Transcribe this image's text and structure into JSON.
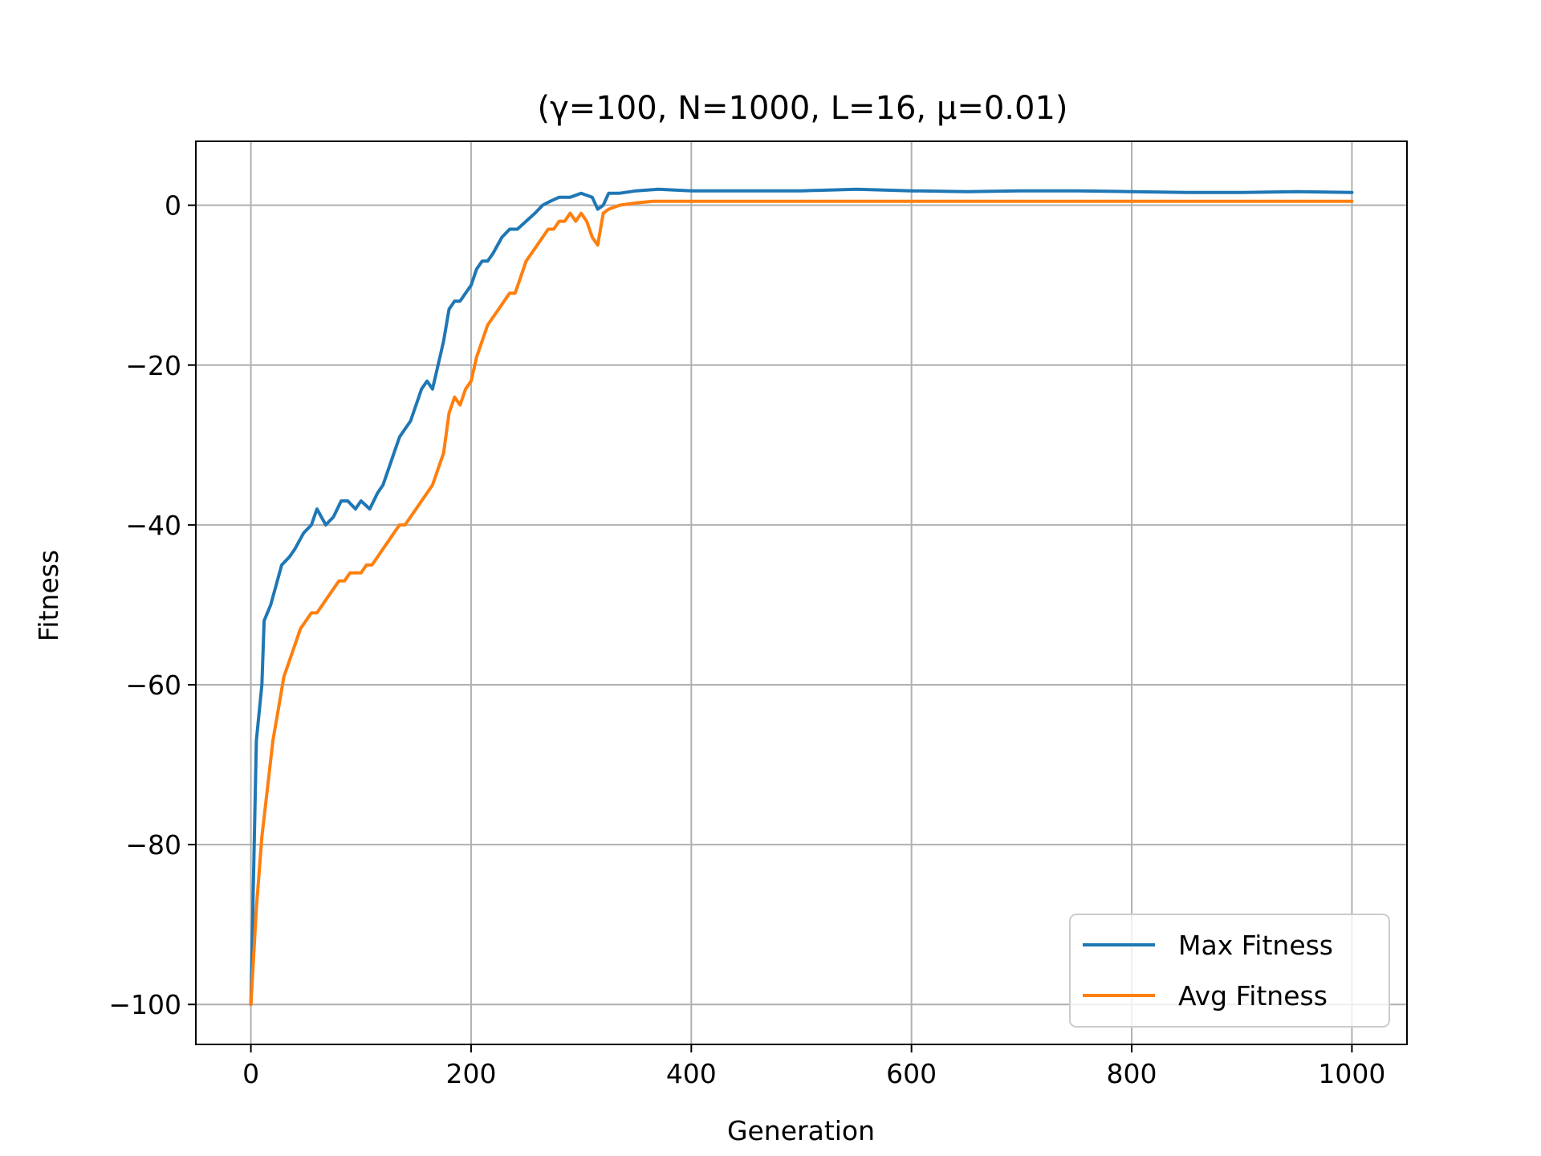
{
  "chart_data": {
    "type": "line",
    "title": "(γ=100, N=1000, L=16, μ=0.01)",
    "xlabel": "Generation",
    "ylabel": "Fitness",
    "xlim": [
      -50,
      1050
    ],
    "ylim": [
      -105,
      8
    ],
    "xticks": [
      0,
      200,
      400,
      600,
      800,
      1000
    ],
    "xtick_labels": [
      "0",
      "200",
      "400",
      "600",
      "800",
      "1000"
    ],
    "yticks": [
      0,
      -20,
      -40,
      -60,
      -80,
      -100
    ],
    "ytick_labels": [
      "0",
      "−20",
      "−40",
      "−60",
      "−80",
      "−100"
    ],
    "grid": true,
    "legend_position": "lower-right",
    "series": [
      {
        "name": "Max Fitness",
        "color": "#1f77b4",
        "points": [
          [
            0,
            -100
          ],
          [
            5,
            -67
          ],
          [
            10,
            -60
          ],
          [
            12,
            -52
          ],
          [
            18,
            -50
          ],
          [
            22,
            -48
          ],
          [
            28,
            -45
          ],
          [
            35,
            -44
          ],
          [
            40,
            -43
          ],
          [
            48,
            -41
          ],
          [
            55,
            -40
          ],
          [
            60,
            -38
          ],
          [
            68,
            -40
          ],
          [
            75,
            -39
          ],
          [
            82,
            -37
          ],
          [
            88,
            -37
          ],
          [
            95,
            -38
          ],
          [
            100,
            -37
          ],
          [
            108,
            -38
          ],
          [
            115,
            -36
          ],
          [
            120,
            -35
          ],
          [
            125,
            -33
          ],
          [
            130,
            -31
          ],
          [
            135,
            -29
          ],
          [
            140,
            -28
          ],
          [
            145,
            -27
          ],
          [
            150,
            -25
          ],
          [
            155,
            -23
          ],
          [
            160,
            -22
          ],
          [
            165,
            -23
          ],
          [
            170,
            -20
          ],
          [
            175,
            -17
          ],
          [
            180,
            -13
          ],
          [
            185,
            -12
          ],
          [
            190,
            -12
          ],
          [
            195,
            -11
          ],
          [
            200,
            -10
          ],
          [
            205,
            -8
          ],
          [
            210,
            -7
          ],
          [
            215,
            -7
          ],
          [
            220,
            -6
          ],
          [
            228,
            -4
          ],
          [
            235,
            -3
          ],
          [
            242,
            -3
          ],
          [
            250,
            -2
          ],
          [
            258,
            -1
          ],
          [
            265,
            0
          ],
          [
            272,
            0.5
          ],
          [
            280,
            1
          ],
          [
            290,
            1
          ],
          [
            300,
            1.5
          ],
          [
            310,
            1
          ],
          [
            315,
            -0.5
          ],
          [
            320,
            0
          ],
          [
            325,
            1.5
          ],
          [
            335,
            1.5
          ],
          [
            350,
            1.8
          ],
          [
            370,
            2
          ],
          [
            400,
            1.8
          ],
          [
            450,
            1.8
          ],
          [
            500,
            1.8
          ],
          [
            550,
            2
          ],
          [
            600,
            1.8
          ],
          [
            650,
            1.7
          ],
          [
            700,
            1.8
          ],
          [
            750,
            1.8
          ],
          [
            800,
            1.7
          ],
          [
            850,
            1.6
          ],
          [
            900,
            1.6
          ],
          [
            950,
            1.7
          ],
          [
            1000,
            1.6
          ]
        ]
      },
      {
        "name": "Avg Fitness",
        "color": "#ff7f0e",
        "points": [
          [
            0,
            -100
          ],
          [
            5,
            -88
          ],
          [
            10,
            -79
          ],
          [
            15,
            -73
          ],
          [
            20,
            -67
          ],
          [
            25,
            -63
          ],
          [
            30,
            -59
          ],
          [
            35,
            -57
          ],
          [
            40,
            -55
          ],
          [
            45,
            -53
          ],
          [
            50,
            -52
          ],
          [
            55,
            -51
          ],
          [
            60,
            -51
          ],
          [
            65,
            -50
          ],
          [
            70,
            -49
          ],
          [
            75,
            -48
          ],
          [
            80,
            -47
          ],
          [
            85,
            -47
          ],
          [
            90,
            -46
          ],
          [
            95,
            -46
          ],
          [
            100,
            -46
          ],
          [
            105,
            -45
          ],
          [
            110,
            -45
          ],
          [
            115,
            -44
          ],
          [
            120,
            -43
          ],
          [
            125,
            -42
          ],
          [
            130,
            -41
          ],
          [
            135,
            -40
          ],
          [
            140,
            -40
          ],
          [
            145,
            -39
          ],
          [
            150,
            -38
          ],
          [
            155,
            -37
          ],
          [
            160,
            -36
          ],
          [
            165,
            -35
          ],
          [
            170,
            -33
          ],
          [
            175,
            -31
          ],
          [
            180,
            -26
          ],
          [
            185,
            -24
          ],
          [
            190,
            -25
          ],
          [
            195,
            -23
          ],
          [
            200,
            -22
          ],
          [
            205,
            -19
          ],
          [
            210,
            -17
          ],
          [
            215,
            -15
          ],
          [
            220,
            -14
          ],
          [
            225,
            -13
          ],
          [
            230,
            -12
          ],
          [
            235,
            -11
          ],
          [
            240,
            -11
          ],
          [
            245,
            -9
          ],
          [
            250,
            -7
          ],
          [
            255,
            -6
          ],
          [
            260,
            -5
          ],
          [
            265,
            -4
          ],
          [
            270,
            -3
          ],
          [
            275,
            -3
          ],
          [
            280,
            -2
          ],
          [
            285,
            -2
          ],
          [
            290,
            -1
          ],
          [
            295,
            -2
          ],
          [
            300,
            -1
          ],
          [
            305,
            -2
          ],
          [
            310,
            -4
          ],
          [
            315,
            -5
          ],
          [
            320,
            -1
          ],
          [
            325,
            -0.5
          ],
          [
            335,
            0
          ],
          [
            350,
            0.3
          ],
          [
            365,
            0.5
          ],
          [
            400,
            0.5
          ],
          [
            500,
            0.5
          ],
          [
            600,
            0.5
          ],
          [
            700,
            0.5
          ],
          [
            800,
            0.5
          ],
          [
            900,
            0.5
          ],
          [
            1000,
            0.5
          ]
        ]
      }
    ]
  }
}
